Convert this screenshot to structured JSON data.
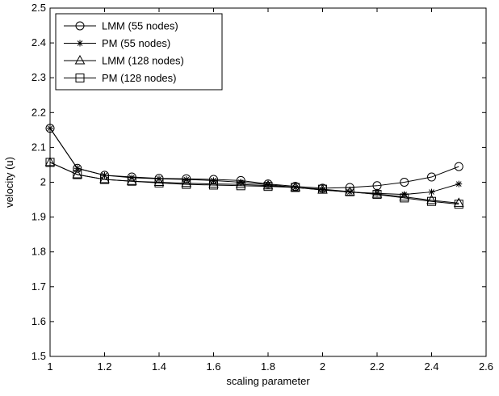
{
  "chart_data": {
    "type": "line",
    "title": "",
    "xlabel": "scaling parameter",
    "ylabel": "velocity (u)",
    "xlim": [
      1,
      2.6
    ],
    "ylim": [
      1.5,
      2.5
    ],
    "xticks": [
      "1",
      "1.2",
      "1.4",
      "1.6",
      "1.8",
      "2",
      "2.2",
      "2.4",
      "2.6"
    ],
    "yticks": [
      "1.5",
      "1.6",
      "1.7",
      "1.8",
      "1.9",
      "2",
      "2.1",
      "2.2",
      "2.3",
      "2.4",
      "2.5"
    ],
    "grid": false,
    "legend_position": "top-left",
    "x": [
      1.0,
      1.1,
      1.2,
      1.3,
      1.4,
      1.5,
      1.6,
      1.7,
      1.8,
      1.9,
      2.0,
      2.1,
      2.2,
      2.3,
      2.4,
      2.5
    ],
    "series": [
      {
        "name": "LMM (55 nodes)",
        "marker": "circle",
        "values": [
          2.155,
          2.04,
          2.02,
          2.015,
          2.011,
          2.01,
          2.008,
          2.005,
          1.995,
          1.988,
          1.983,
          1.985,
          1.99,
          2.0,
          2.015,
          2.045
        ]
      },
      {
        "name": "PM (55 nodes)",
        "marker": "star",
        "values": [
          2.155,
          2.04,
          2.02,
          2.013,
          2.01,
          2.008,
          2.005,
          2.0,
          1.993,
          1.985,
          1.978,
          1.972,
          1.968,
          1.965,
          1.972,
          1.995
        ]
      },
      {
        "name": "LMM (128 nodes)",
        "marker": "triangle",
        "values": [
          2.057,
          2.022,
          2.008,
          2.003,
          2.0,
          1.997,
          1.995,
          1.994,
          1.99,
          1.985,
          1.978,
          1.972,
          1.966,
          1.958,
          1.948,
          1.94
        ]
      },
      {
        "name": "PM (128 nodes)",
        "marker": "square",
        "values": [
          2.057,
          2.022,
          2.008,
          2.003,
          1.998,
          1.994,
          1.992,
          1.99,
          1.988,
          1.985,
          1.98,
          1.973,
          1.965,
          1.955,
          1.945,
          1.937
        ]
      }
    ],
    "colors": {
      "line": "#000000",
      "marker": "#000000",
      "background": "#ffffff"
    }
  }
}
